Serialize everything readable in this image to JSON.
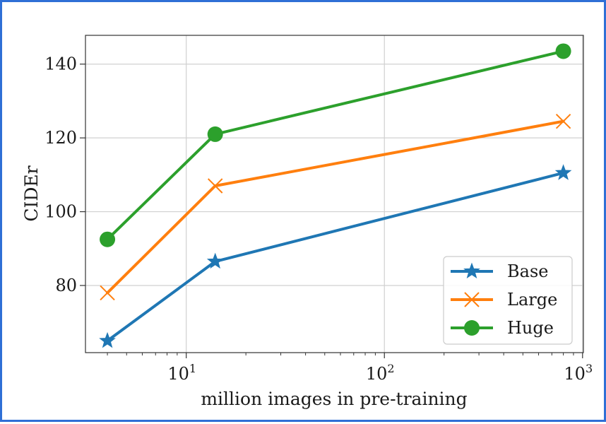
{
  "chart_data": {
    "type": "line",
    "xlabel": "million images in pre-training",
    "ylabel": "CIDEr",
    "xscale": "log",
    "xlim": [
      3.1,
      1010
    ],
    "ylim": [
      61.8,
      147.8
    ],
    "xticks": [
      {
        "value": 10,
        "base": "10",
        "exp": "1"
      },
      {
        "value": 100,
        "base": "10",
        "exp": "2"
      },
      {
        "value": 1000,
        "base": "10",
        "exp": "3"
      }
    ],
    "yticks": [
      80,
      100,
      120,
      140
    ],
    "grid": true,
    "legend_position": "lower-right",
    "series": [
      {
        "name": "Base",
        "color": "#1f77b4",
        "marker": "star",
        "x": [
          4,
          14,
          800
        ],
        "y": [
          65,
          86.5,
          110.5
        ]
      },
      {
        "name": "Large",
        "color": "#ff7f0e",
        "marker": "x",
        "x": [
          4,
          14,
          800
        ],
        "y": [
          78,
          107,
          124.5
        ]
      },
      {
        "name": "Huge",
        "color": "#2ca02c",
        "marker": "circle",
        "x": [
          4,
          14,
          800
        ],
        "y": [
          92.5,
          121,
          143.5
        ]
      }
    ]
  }
}
